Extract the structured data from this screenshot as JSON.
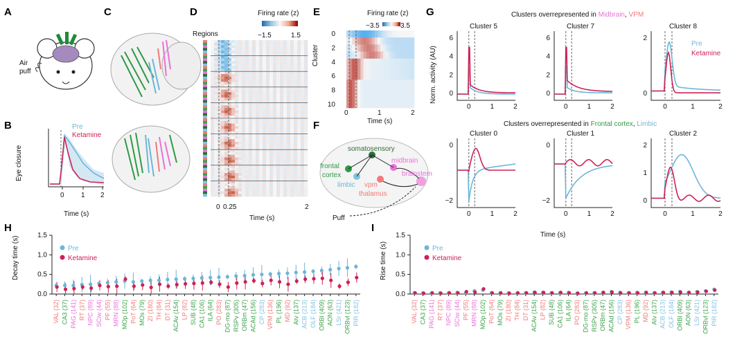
{
  "panels": {
    "A": "A",
    "B": "B",
    "C": "C",
    "D": "D",
    "E": "E",
    "F": "F",
    "G": "G",
    "H": "H",
    "I": "I"
  },
  "colors": {
    "pre": "#6bb6d8",
    "ketamine": "#cc2255",
    "midbrain": "#e872d8",
    "thalamus": "#f07a7a",
    "frontal": "#2e9a45",
    "limbic": "#7fc3e3",
    "green": "#3ca24a"
  },
  "a": {
    "air": "Air",
    "puff": "puff"
  },
  "b": {
    "ylabel": "Eye closure",
    "xlabel": "Time (s)",
    "legend_pre": "Pre",
    "legend_ket": "Ketamine",
    "xticks": [
      "0",
      "1",
      "2"
    ]
  },
  "d": {
    "regions": "Regions",
    "cbar_title": "Firing rate (z)",
    "cbar_min": "−1.5",
    "cbar_max": "1.5",
    "xticks": [
      "0",
      "0.25",
      "2"
    ],
    "xlabel": "Time (s)"
  },
  "e": {
    "cbar_title": "Firing rate (z)",
    "cbar_min": "−3.5",
    "cbar_max": "3.5",
    "ylabel": "Cluster",
    "yticks": [
      "0",
      "2",
      "4",
      "6",
      "8",
      "10"
    ],
    "xticks": [
      "0",
      "1",
      "2"
    ],
    "xlabel": "Time (s)"
  },
  "f": {
    "somatosensory": "somatosensory",
    "frontal1": "frontal",
    "frontal2": "cortex",
    "limbic": "limbic",
    "vpm": "vpm",
    "thalamus": "thalamus",
    "midbrain": "midbrain",
    "brainstem": "brainstem",
    "puff": "Puff"
  },
  "g": {
    "title_top_a": "Clusters overrepresented in ",
    "title_top_mid": "Midbrain",
    "title_top_sep": ", ",
    "title_top_vpm": "VPM",
    "title_bot_a": "Clusters overrepresented in ",
    "title_bot_front": "Frontal cortex",
    "title_bot_sep": ", ",
    "title_bot_limbic": "Limbic",
    "ylabel": "Norm. activity (AU)",
    "xlabel": "Time (s)",
    "legend_pre": "Pre",
    "legend_ket": "Ketamine",
    "clusters": [
      {
        "title": "Cluster 5",
        "yticks": [
          "0",
          "2",
          "4",
          "6"
        ]
      },
      {
        "title": "Cluster 7",
        "yticks": [
          "0",
          "2",
          "4",
          "6"
        ]
      },
      {
        "title": "Cluster 8",
        "yticks": [
          "0",
          "2"
        ]
      },
      {
        "title": "Cluster 0",
        "yticks": [
          "−2",
          "0"
        ]
      },
      {
        "title": "Cluster 1",
        "yticks": [
          "−2",
          "0"
        ]
      },
      {
        "title": "Cluster 2",
        "yticks": [
          "0",
          "1",
          "2"
        ]
      }
    ],
    "xticks": [
      "0",
      "1",
      "2"
    ]
  },
  "h": {
    "ylabel": "Decay time (s)",
    "yticks": [
      "0.0",
      "0.5",
      "1.0",
      "1.5"
    ],
    "legend_pre": "Pre",
    "legend_ket": "Ketamine"
  },
  "i": {
    "ylabel": "Rise time (s)",
    "yticks": [
      "0.0",
      "0.5",
      "1.0",
      "1.5"
    ],
    "legend_pre": "Pre",
    "legend_ket": "Ketamine"
  },
  "chart_data": [
    {
      "type": "scatter",
      "title": "H",
      "ylabel": "Decay time (s)",
      "ylim": [
        0,
        1.5
      ],
      "categories": [
        "VAL (32)",
        "CA3 (37)",
        "PAG (141)",
        "RT (37)",
        "NPC (89)",
        "SCiw (44)",
        "PF (55)",
        "MRN (88)",
        "MOp (102)",
        "PoT (64)",
        "MOs (79)",
        "ZI (180)",
        "TH (84)",
        "DT (31)",
        "ACAv (154)",
        "LP (82)",
        "SUB (48)",
        "CA1 (106)",
        "ILA (64)",
        "PO (283)",
        "DG-mo (87)",
        "RSPv (305)",
        "ORBm (47)",
        "ACAd (156)",
        "CP (283)",
        "VPM (136)",
        "PL (196)",
        "MD (92)",
        "AIv (137)",
        "ACB (213)",
        "OLF (184)",
        "ORBl (409)",
        "AON (63)",
        "LSr (421)",
        "ORBvl (123)",
        "PIR (182)"
      ],
      "cat_groups": [
        "thal",
        "frontal",
        "mid",
        "thal",
        "mid",
        "mid",
        "thal",
        "mid",
        "frontal",
        "thal",
        "frontal",
        "thal",
        "thal",
        "thal",
        "frontal",
        "thal",
        "frontal",
        "frontal",
        "frontal",
        "thal",
        "frontal",
        "frontal",
        "frontal",
        "frontal",
        "limbic",
        "thal",
        "frontal",
        "thal",
        "frontal",
        "limbic",
        "limbic",
        "frontal",
        "frontal",
        "limbic",
        "frontal",
        "limbic"
      ],
      "series": [
        {
          "name": "Pre",
          "values": [
            0.22,
            0.22,
            0.22,
            0.24,
            0.25,
            0.27,
            0.29,
            0.31,
            0.33,
            0.31,
            0.33,
            0.35,
            0.35,
            0.37,
            0.38,
            0.39,
            0.4,
            0.41,
            0.42,
            0.43,
            0.44,
            0.46,
            0.47,
            0.49,
            0.5,
            0.51,
            0.52,
            0.53,
            0.55,
            0.56,
            0.58,
            0.6,
            0.62,
            0.65,
            0.67,
            0.7
          ]
        },
        {
          "name": "Ketamine",
          "values": [
            0.18,
            0.12,
            0.14,
            0.18,
            0.15,
            0.22,
            0.19,
            0.2,
            0.38,
            0.2,
            0.23,
            0.17,
            0.25,
            0.2,
            0.24,
            0.26,
            0.27,
            0.28,
            0.3,
            0.25,
            0.18,
            0.28,
            0.31,
            0.34,
            0.27,
            0.35,
            0.31,
            0.25,
            0.33,
            0.38,
            0.39,
            0.4,
            0.35,
            0.2,
            0.3,
            0.42
          ]
        }
      ]
    },
    {
      "type": "scatter",
      "title": "I",
      "ylabel": "Rise time (s)",
      "ylim": [
        0,
        1.5
      ],
      "series": [
        {
          "name": "Pre",
          "values": [
            0.03,
            0.03,
            0.02,
            0.03,
            0.03,
            0.04,
            0.04,
            0.08,
            0.1,
            0.03,
            0.02,
            0.03,
            0.02,
            0.03,
            0.05,
            0.04,
            0.03,
            0.03,
            0.04,
            0.02,
            0.02,
            0.03,
            0.04,
            0.06,
            0.04,
            0.03,
            0.04,
            0.04,
            0.03,
            0.04,
            0.05,
            0.06,
            0.04,
            0.06,
            0.08,
            0.12
          ]
        },
        {
          "name": "Ketamine",
          "values": [
            0.03,
            0.02,
            0.03,
            0.02,
            0.03,
            0.03,
            0.06,
            0.05,
            0.13,
            0.03,
            0.03,
            0.02,
            0.03,
            0.03,
            0.04,
            0.04,
            0.03,
            0.04,
            0.03,
            0.02,
            0.03,
            0.03,
            0.04,
            0.05,
            0.03,
            0.03,
            0.03,
            0.04,
            0.03,
            0.04,
            0.04,
            0.05,
            0.04,
            0.05,
            0.07,
            0.1
          ]
        }
      ]
    }
  ]
}
